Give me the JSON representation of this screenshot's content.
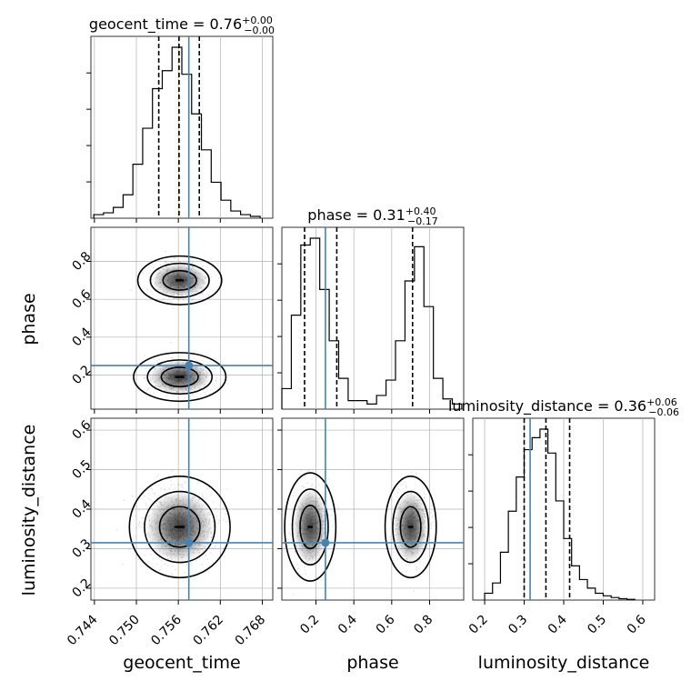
{
  "chart_data": {
    "type": "corner",
    "parameters": [
      "geocent_time",
      "phase",
      "luminosity_distance"
    ],
    "axis_labels": {
      "geocent_time": "geocent_time",
      "phase": "phase",
      "luminosity_distance": "luminosity_distance"
    },
    "titles": [
      {
        "param": "geocent_time",
        "name": "geocent_time",
        "median": "0.76",
        "plus": "+0.00",
        "minus": "−0.00"
      },
      {
        "param": "phase",
        "name": "phase",
        "median": "0.31",
        "plus": "+0.40",
        "minus": "−0.17"
      },
      {
        "param": "luminosity_distance",
        "name": "luminosity_distance",
        "median": "0.36",
        "plus": "+0.06",
        "minus": "−0.06"
      }
    ],
    "ranges": {
      "geocent_time": [
        0.7435,
        0.7695
      ],
      "phase": [
        0.02,
        0.98
      ],
      "luminosity_distance": [
        0.17,
        0.63
      ]
    },
    "ticks": {
      "geocent_time": {
        "values": [
          0.744,
          0.75,
          0.756,
          0.762,
          0.768
        ],
        "labels": [
          "0.744",
          "0.750",
          "0.756",
          "0.762",
          "0.768"
        ]
      },
      "phase": {
        "values": [
          0.2,
          0.4,
          0.6,
          0.8
        ],
        "labels": [
          "0.2",
          "0.4",
          "0.6",
          "0.8"
        ]
      },
      "luminosity_distance": {
        "values": [
          0.2,
          0.3,
          0.4,
          0.5,
          0.6
        ],
        "labels": [
          "0.2",
          "0.3",
          "0.4",
          "0.5",
          "0.6"
        ]
      }
    },
    "truths": {
      "geocent_time": 0.7575,
      "phase": 0.25,
      "luminosity_distance": 0.315
    },
    "quantiles": {
      "geocent_time": [
        0.7532,
        0.7561,
        0.759
      ],
      "phase": [
        0.14,
        0.31,
        0.71
      ],
      "luminosity_distance": [
        0.3,
        0.355,
        0.415
      ]
    },
    "histograms": {
      "geocent_time": {
        "bin_edges": [
          0.7439,
          0.7453,
          0.7467,
          0.7481,
          0.7495,
          0.7509,
          0.7523,
          0.7537,
          0.7551,
          0.7565,
          0.7579,
          0.7593,
          0.7607,
          0.7621,
          0.7635,
          0.7649,
          0.7663,
          0.7677
        ],
        "counts": [
          0.02,
          0.03,
          0.06,
          0.13,
          0.3,
          0.5,
          0.72,
          0.82,
          0.95,
          0.8,
          0.58,
          0.38,
          0.2,
          0.1,
          0.04,
          0.02,
          0.01
        ]
      },
      "phase": {
        "bin_edges": [
          0.02,
          0.07,
          0.12,
          0.17,
          0.22,
          0.27,
          0.32,
          0.37,
          0.42,
          0.47,
          0.52,
          0.57,
          0.62,
          0.67,
          0.72,
          0.77,
          0.82,
          0.87,
          0.92,
          0.97
        ],
        "counts": [
          0.12,
          0.55,
          0.96,
          1.0,
          0.7,
          0.4,
          0.18,
          0.05,
          0.05,
          0.03,
          0.08,
          0.17,
          0.4,
          0.75,
          0.95,
          0.6,
          0.18,
          0.06,
          0.03
        ]
      },
      "luminosity_distance": {
        "bin_edges": [
          0.2,
          0.22,
          0.24,
          0.26,
          0.28,
          0.3,
          0.32,
          0.34,
          0.36,
          0.38,
          0.4,
          0.42,
          0.44,
          0.46,
          0.48,
          0.5,
          0.52,
          0.54,
          0.56,
          0.58
        ],
        "counts": [
          0.04,
          0.1,
          0.28,
          0.52,
          0.72,
          0.88,
          0.95,
          1.0,
          0.86,
          0.58,
          0.36,
          0.2,
          0.12,
          0.07,
          0.04,
          0.025,
          0.015,
          0.008,
          0.004
        ]
      }
    },
    "contour_levels": 3,
    "grid": true,
    "colors": {
      "hist_line": "#000000",
      "truth": "#4682b4",
      "contour": "#000000",
      "grid": "#b0b0b0",
      "scatter": "#000000"
    }
  }
}
